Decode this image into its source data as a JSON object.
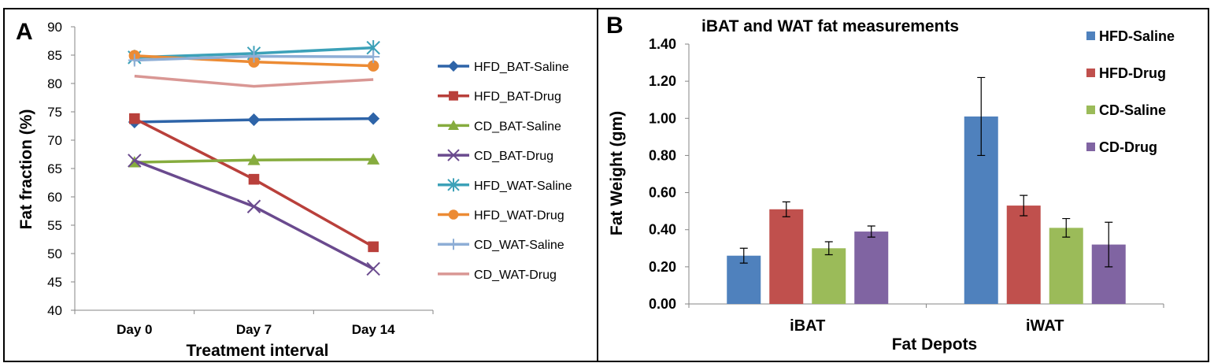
{
  "chart_data": [
    {
      "type": "line",
      "panel_label": "A",
      "title": "",
      "xlabel": "Treatment interval",
      "ylabel": "Fat fraction (%)",
      "ylim": [
        40,
        90
      ],
      "yticks": [
        "40",
        "45",
        "50",
        "55",
        "60",
        "65",
        "70",
        "75",
        "80",
        "85",
        "90"
      ],
      "categories": [
        "Day 0",
        "Day 7",
        "Day 14"
      ],
      "grid": false,
      "legend_position": "right",
      "series": [
        {
          "name": "HFD_BAT-Saline",
          "color": "#2e64a8",
          "marker": "diamond",
          "values": [
            73.2,
            73.6,
            73.8
          ]
        },
        {
          "name": "HFD_BAT-Drug",
          "color": "#b9403b",
          "marker": "square",
          "values": [
            73.8,
            63.1,
            51.2
          ]
        },
        {
          "name": "CD_BAT-Saline",
          "color": "#86ac3e",
          "marker": "triangle",
          "values": [
            66.1,
            66.5,
            66.6
          ]
        },
        {
          "name": "CD_BAT-Drug",
          "color": "#6a4a8e",
          "marker": "x",
          "values": [
            66.4,
            58.3,
            47.3
          ]
        },
        {
          "name": "HFD_WAT-Saline",
          "color": "#3ca1b8",
          "marker": "star",
          "values": [
            84.6,
            85.3,
            86.3
          ]
        },
        {
          "name": "HFD_WAT-Drug",
          "color": "#ec8b34",
          "marker": "circle",
          "values": [
            84.9,
            83.8,
            83.1
          ]
        },
        {
          "name": "CD_WAT-Saline",
          "color": "#8eaed6",
          "marker": "plus",
          "values": [
            84.1,
            84.8,
            84.7
          ]
        },
        {
          "name": "CD_WAT-Drug",
          "color": "#d99794",
          "marker": "none",
          "values": [
            81.3,
            79.5,
            80.7
          ]
        }
      ]
    },
    {
      "type": "bar",
      "panel_label": "B",
      "title": "iBAT and WAT fat measurements",
      "xlabel": "Fat Depots",
      "ylabel": "Fat Weight (gm)",
      "ylim": [
        0,
        1.4
      ],
      "yticks": [
        "0.00",
        "0.20",
        "0.40",
        "0.60",
        "0.80",
        "1.00",
        "1.20",
        "1.40"
      ],
      "categories": [
        "iBAT",
        "iWAT"
      ],
      "grid": false,
      "legend_position": "top-right",
      "series": [
        {
          "name": "HFD-Saline",
          "color": "#4f81bd",
          "values": [
            0.26,
            1.01
          ],
          "errors": [
            0.04,
            0.21
          ]
        },
        {
          "name": "HFD-Drug",
          "color": "#c0504d",
          "values": [
            0.51,
            0.53
          ],
          "errors": [
            0.04,
            0.055
          ]
        },
        {
          "name": "CD-Saline",
          "color": "#9bbb59",
          "values": [
            0.3,
            0.41
          ],
          "errors": [
            0.035,
            0.05
          ]
        },
        {
          "name": "CD-Drug",
          "color": "#8064a2",
          "values": [
            0.39,
            0.32
          ],
          "errors": [
            0.03,
            0.12
          ]
        }
      ]
    }
  ]
}
